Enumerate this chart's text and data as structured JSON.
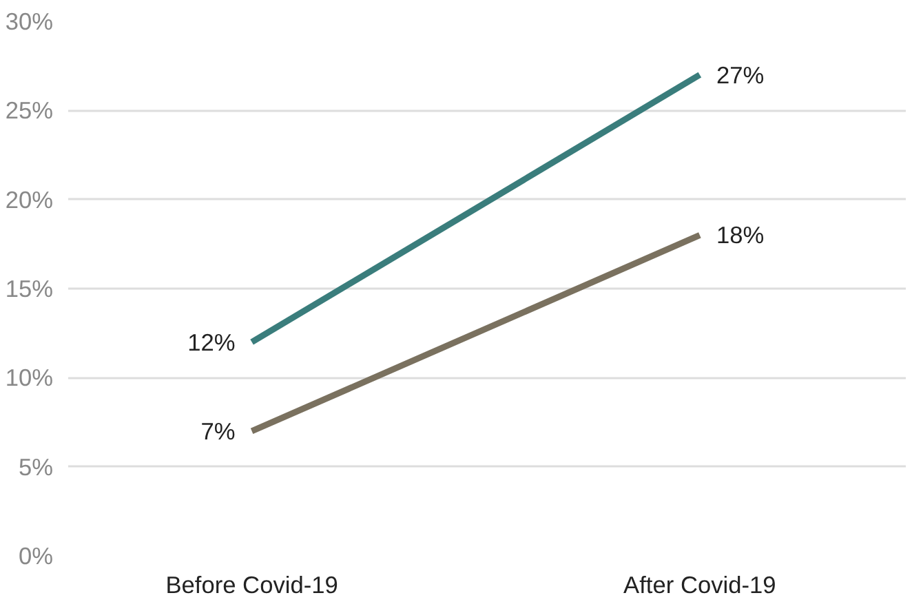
{
  "chart_data": {
    "type": "line",
    "categories": [
      "Before Covid-19",
      "After Covid-19"
    ],
    "series": [
      {
        "color": "#3a7d7c",
        "values": [
          12,
          27
        ],
        "value_labels": [
          "12%",
          "27%"
        ]
      },
      {
        "color": "#7a715f",
        "values": [
          7,
          18
        ],
        "value_labels": [
          "7%",
          "18%"
        ]
      }
    ],
    "ylim": [
      0,
      30
    ],
    "yticks": [
      {
        "value": 0,
        "label": "0%"
      },
      {
        "value": 5,
        "label": "5%"
      },
      {
        "value": 10,
        "label": "10%"
      },
      {
        "value": 15,
        "label": "15%"
      },
      {
        "value": 20,
        "label": "20%"
      },
      {
        "value": 25,
        "label": "25%"
      },
      {
        "value": 30,
        "label": "30%"
      }
    ],
    "grid": "y",
    "marker": "none",
    "line_style": "solid"
  }
}
